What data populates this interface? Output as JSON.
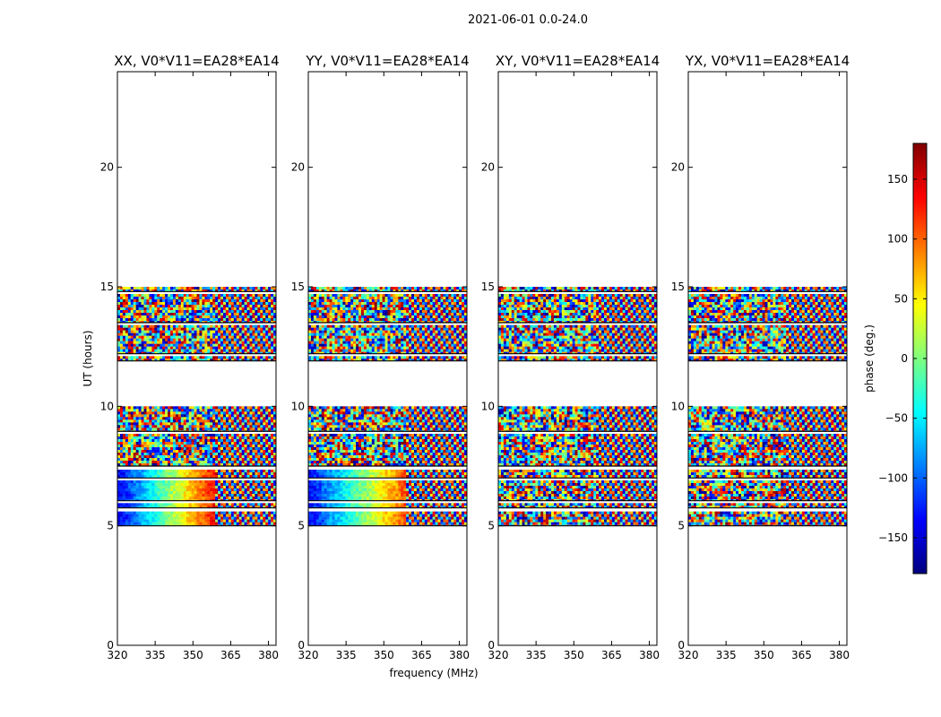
{
  "suptitle": "2021-06-01 0.0-24.0",
  "chart_data": {
    "type": "heatmap",
    "panels": [
      {
        "title": "XX, V0*V11=EA28*EA14",
        "polarization": "XX"
      },
      {
        "title": "YY, V0*V11=EA28*EA14",
        "polarization": "YY"
      },
      {
        "title": "XY, V0*V11=EA28*EA14",
        "polarization": "XY"
      },
      {
        "title": "YX, V0*V11=EA28*EA14",
        "polarization": "YX"
      }
    ],
    "xlabel": "frequency (MHz)",
    "ylabel": "UT (hours)",
    "xlim": [
      320,
      383
    ],
    "ylim": [
      0,
      24
    ],
    "xticks": [
      320,
      335,
      350,
      365,
      380
    ],
    "yticks": [
      0,
      5,
      10,
      15,
      20
    ],
    "data_time_blocks": [
      [
        5.0,
        5.6
      ],
      [
        5.75,
        5.95
      ],
      [
        6.05,
        6.9
      ],
      [
        7.0,
        7.35
      ],
      [
        7.5,
        8.85
      ],
      [
        8.95,
        10.0
      ],
      [
        11.9,
        12.1
      ],
      [
        12.2,
        13.4
      ],
      [
        13.5,
        14.7
      ],
      [
        14.8,
        15.0
      ]
    ],
    "colorbar": {
      "label": "phase (deg.)",
      "range": [
        -180,
        180
      ],
      "ticks": [
        -150,
        -100,
        -50,
        0,
        50,
        100,
        150
      ],
      "colormap": [
        "#00007f",
        "#0000ff",
        "#007fff",
        "#00ffff",
        "#7fff7f",
        "#ffff00",
        "#ff7f00",
        "#ff0000",
        "#7f0000"
      ]
    }
  }
}
